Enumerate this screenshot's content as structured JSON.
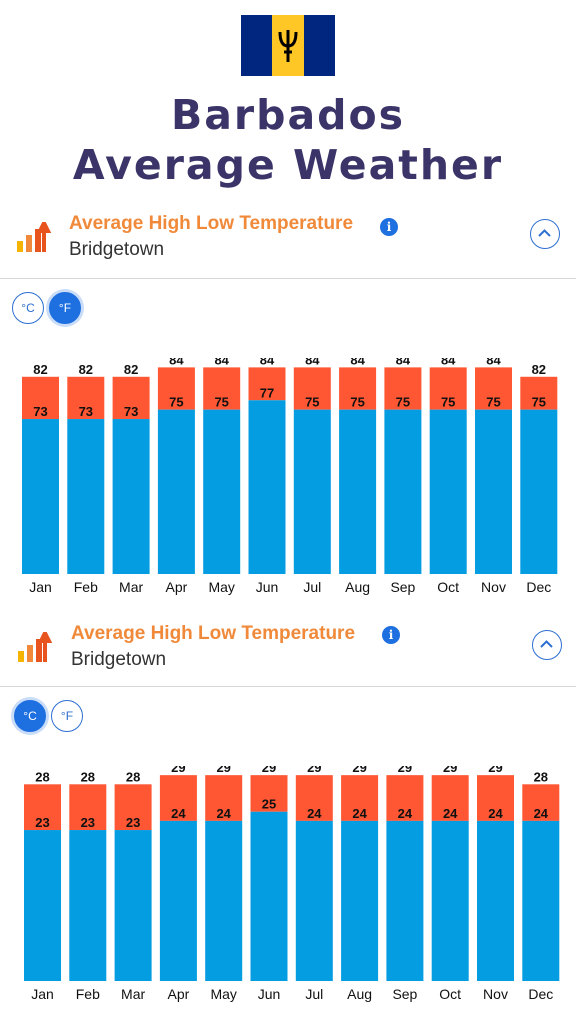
{
  "flag": {
    "colors": [
      "#00267f",
      "#ffc726",
      "#00267f"
    ],
    "emblem": "trident-icon"
  },
  "page_title_line1": "Barbados",
  "page_title_line2": "Average Weather",
  "colors": {
    "title": "#3a3468",
    "high": "#ff5733",
    "low": "#049de1",
    "accent": "#f08a3a",
    "button": "#1e6fe0"
  },
  "sections": [
    {
      "title": "Average High Low Temperature",
      "subtitle": "Bridgetown",
      "units": {
        "celsius": "°C",
        "fahrenheit": "°F",
        "active": "fahrenheit"
      }
    },
    {
      "title": "Average High Low Temperature",
      "subtitle": "Bridgetown",
      "units": {
        "celsius": "°C",
        "fahrenheit": "°F",
        "active": "celsius"
      }
    }
  ],
  "chart_data": [
    {
      "type": "bar",
      "categories": [
        "Jan",
        "Feb",
        "Mar",
        "Apr",
        "May",
        "Jun",
        "Jul",
        "Aug",
        "Sep",
        "Oct",
        "Nov",
        "Dec"
      ],
      "series": [
        {
          "values": [
            82,
            82,
            82,
            84,
            84,
            84,
            84,
            84,
            84,
            84,
            84,
            82
          ],
          "color": "#ff5733"
        },
        {
          "values": [
            73,
            73,
            73,
            75,
            75,
            77,
            75,
            75,
            75,
            75,
            75,
            75
          ],
          "color": "#049de1"
        }
      ],
      "ylim": [
        40,
        86
      ],
      "grid": false
    },
    {
      "type": "bar",
      "categories": [
        "Jan",
        "Feb",
        "Mar",
        "Apr",
        "May",
        "Jun",
        "Jul",
        "Aug",
        "Sep",
        "Oct",
        "Nov",
        "Dec"
      ],
      "series": [
        {
          "values": [
            28,
            28,
            28,
            29,
            29,
            29,
            29,
            29,
            29,
            29,
            29,
            28
          ],
          "color": "#ff5733"
        },
        {
          "values": [
            23,
            23,
            23,
            24,
            24,
            25,
            24,
            24,
            24,
            24,
            24,
            24
          ],
          "color": "#049de1"
        }
      ],
      "ylim": [
        6.5,
        30
      ],
      "grid": false
    }
  ]
}
